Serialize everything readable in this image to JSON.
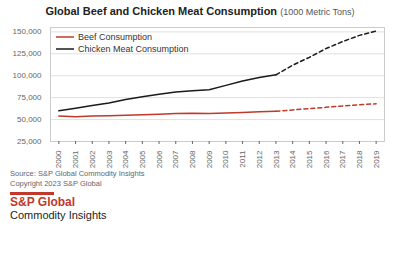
{
  "chart_data": {
    "type": "line",
    "title": "Global Beef and Chicken Meat Consumption",
    "subtitle": "(1000 Metric Tons)",
    "x": [
      2000,
      2001,
      2002,
      2003,
      2004,
      2005,
      2006,
      2007,
      2008,
      2009,
      2010,
      2011,
      2012,
      2013,
      2014,
      2015,
      2016,
      2017,
      2018,
      2019
    ],
    "series": [
      {
        "name": "Beef Consumption",
        "color": "#c0392b",
        "line_style": "solid",
        "values": [
          54000,
          53200,
          54000,
          54500,
          55000,
          55500,
          56000,
          56800,
          57200,
          57000,
          57500,
          58000,
          58800,
          59500,
          null,
          null,
          null,
          null,
          null,
          null
        ]
      },
      {
        "name": "Chicken Meat Consumption",
        "color": "#1a1a1a",
        "line_style": "solid",
        "values": [
          60000,
          63000,
          66000,
          69000,
          73000,
          76000,
          79000,
          81500,
          83000,
          84000,
          89000,
          94000,
          98000,
          101000,
          null,
          null,
          null,
          null,
          null,
          null
        ]
      },
      {
        "name": "Beef Consumption",
        "color": "#c0392b",
        "line_style": "dashed",
        "values": [
          null,
          null,
          null,
          null,
          null,
          null,
          null,
          null,
          null,
          null,
          null,
          null,
          null,
          59500,
          61000,
          62500,
          64000,
          65500,
          67000,
          68000
        ]
      },
      {
        "name": "Chicken Meat Consumption",
        "color": "#1a1a1a",
        "line_style": "dashed",
        "values": [
          null,
          null,
          null,
          null,
          null,
          null,
          null,
          null,
          null,
          null,
          null,
          null,
          null,
          101000,
          112000,
          121000,
          131000,
          139000,
          146000,
          151000
        ]
      }
    ],
    "xlim": [
      1999.5,
      2019.5
    ],
    "xticks": [
      2000,
      2001,
      2002,
      2003,
      2004,
      2005,
      2006,
      2007,
      2008,
      2009,
      2010,
      2011,
      2012,
      2013,
      2014,
      2015,
      2016,
      2017,
      2018,
      2019
    ],
    "ylim": [
      25000,
      155000
    ],
    "yticks": [
      {
        "value": 25000,
        "label": "25,000"
      },
      {
        "value": 50000,
        "label": "50,000"
      },
      {
        "value": 75000,
        "label": "75,000"
      },
      {
        "value": 100000,
        "label": "100,000"
      },
      {
        "value": 125000,
        "label": "125,000"
      },
      {
        "value": 150000,
        "label": "150,000"
      }
    ],
    "grid": true,
    "legend": "upper left",
    "annotations": [
      {
        "text": "Source: S&P Global Commodity Insights\nCopyright 2023 S&P Global"
      },
      {
        "text": "S&P Global",
        "color": "#c0392b"
      },
      {
        "text": "Commodity Insights"
      }
    ]
  }
}
